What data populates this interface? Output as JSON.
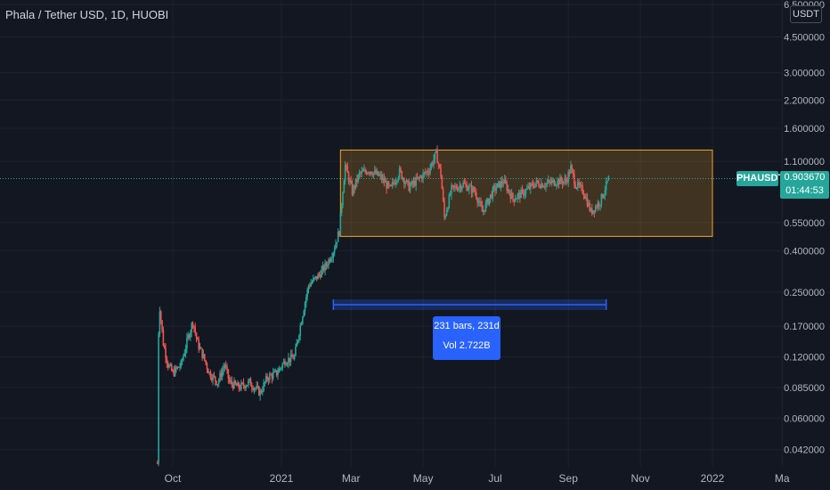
{
  "title": "Phala / Tether USD, 1D, HUOBI",
  "currency_badge": "USDT",
  "symbol_badge": "PHAUSDT",
  "price_badge": {
    "price": "0.903670",
    "countdown": "01:44:53"
  },
  "measure": {
    "bars": "231 bars, 231d",
    "volume": "Vol 2.722B"
  },
  "colors": {
    "up": "#26a69a",
    "down": "#ef5350",
    "range_box": "#f5a623",
    "measure": "#2962ff",
    "background": "#131722"
  },
  "chart_data": {
    "type": "candlestick",
    "y_scale": "log",
    "ylim": [
      0.036,
      6.5
    ],
    "y_ticks": [
      "6.500000",
      "4.500000",
      "3.000000",
      "2.200000",
      "1.600000",
      "1.100000",
      "0.550000",
      "0.400000",
      "0.250000",
      "0.170000",
      "0.120000",
      "0.085000",
      "0.060000",
      "0.042000"
    ],
    "x_ticks": [
      "Oct",
      "2021",
      "Mar",
      "May",
      "Jul",
      "Sep",
      "Nov",
      "2022",
      "Ma"
    ],
    "last_price": 0.90367,
    "range_box": {
      "from": "2021-02-20",
      "to": "2022-01-01",
      "low": 0.47,
      "high": 1.25
    },
    "measure_range": {
      "from": "2021-02-14",
      "to": "2021-10-03"
    },
    "price_path": [
      [
        "2020-09-18",
        0.036
      ],
      [
        "2020-09-19",
        0.16
      ],
      [
        "2020-09-20",
        0.21
      ],
      [
        "2020-09-23",
        0.14
      ],
      [
        "2020-09-27",
        0.11
      ],
      [
        "2020-10-01",
        0.1
      ],
      [
        "2020-10-08",
        0.11
      ],
      [
        "2020-10-14",
        0.15
      ],
      [
        "2020-10-18",
        0.18
      ],
      [
        "2020-10-22",
        0.14
      ],
      [
        "2020-10-27",
        0.12
      ],
      [
        "2020-11-01",
        0.1
      ],
      [
        "2020-11-08",
        0.09
      ],
      [
        "2020-11-14",
        0.11
      ],
      [
        "2020-11-18",
        0.09
      ],
      [
        "2020-11-26",
        0.085
      ],
      [
        "2020-12-05",
        0.09
      ],
      [
        "2020-12-14",
        0.08
      ],
      [
        "2020-12-20",
        0.095
      ],
      [
        "2020-12-28",
        0.1
      ],
      [
        "2021-01-04",
        0.115
      ],
      [
        "2021-01-12",
        0.12
      ],
      [
        "2021-01-16",
        0.16
      ],
      [
        "2021-01-20",
        0.21
      ],
      [
        "2021-01-24",
        0.27
      ],
      [
        "2021-02-01",
        0.3
      ],
      [
        "2021-02-08",
        0.34
      ],
      [
        "2021-02-14",
        0.4
      ],
      [
        "2021-02-19",
        0.5
      ],
      [
        "2021-02-22",
        0.8
      ],
      [
        "2021-02-24",
        1.05
      ],
      [
        "2021-03-02",
        0.78
      ],
      [
        "2021-03-08",
        0.95
      ],
      [
        "2021-03-16",
        1.0
      ],
      [
        "2021-03-26",
        0.92
      ],
      [
        "2021-04-03",
        0.8
      ],
      [
        "2021-04-11",
        0.98
      ],
      [
        "2021-04-19",
        0.82
      ],
      [
        "2021-04-27",
        0.9
      ],
      [
        "2021-05-06",
        1.0
      ],
      [
        "2021-05-12",
        1.2
      ],
      [
        "2021-05-16",
        0.95
      ],
      [
        "2021-05-19",
        0.58
      ],
      [
        "2021-05-25",
        0.8
      ],
      [
        "2021-06-04",
        0.85
      ],
      [
        "2021-06-14",
        0.78
      ],
      [
        "2021-06-20",
        0.62
      ],
      [
        "2021-06-30",
        0.8
      ],
      [
        "2021-07-08",
        0.88
      ],
      [
        "2021-07-16",
        0.72
      ],
      [
        "2021-07-26",
        0.78
      ],
      [
        "2021-08-04",
        0.86
      ],
      [
        "2021-08-12",
        0.85
      ],
      [
        "2021-08-22",
        0.88
      ],
      [
        "2021-08-30",
        0.88
      ],
      [
        "2021-09-03",
        1.02
      ],
      [
        "2021-09-07",
        0.85
      ],
      [
        "2021-09-14",
        0.78
      ],
      [
        "2021-09-20",
        0.62
      ],
      [
        "2021-09-28",
        0.7
      ],
      [
        "2021-10-05",
        0.9
      ]
    ]
  }
}
